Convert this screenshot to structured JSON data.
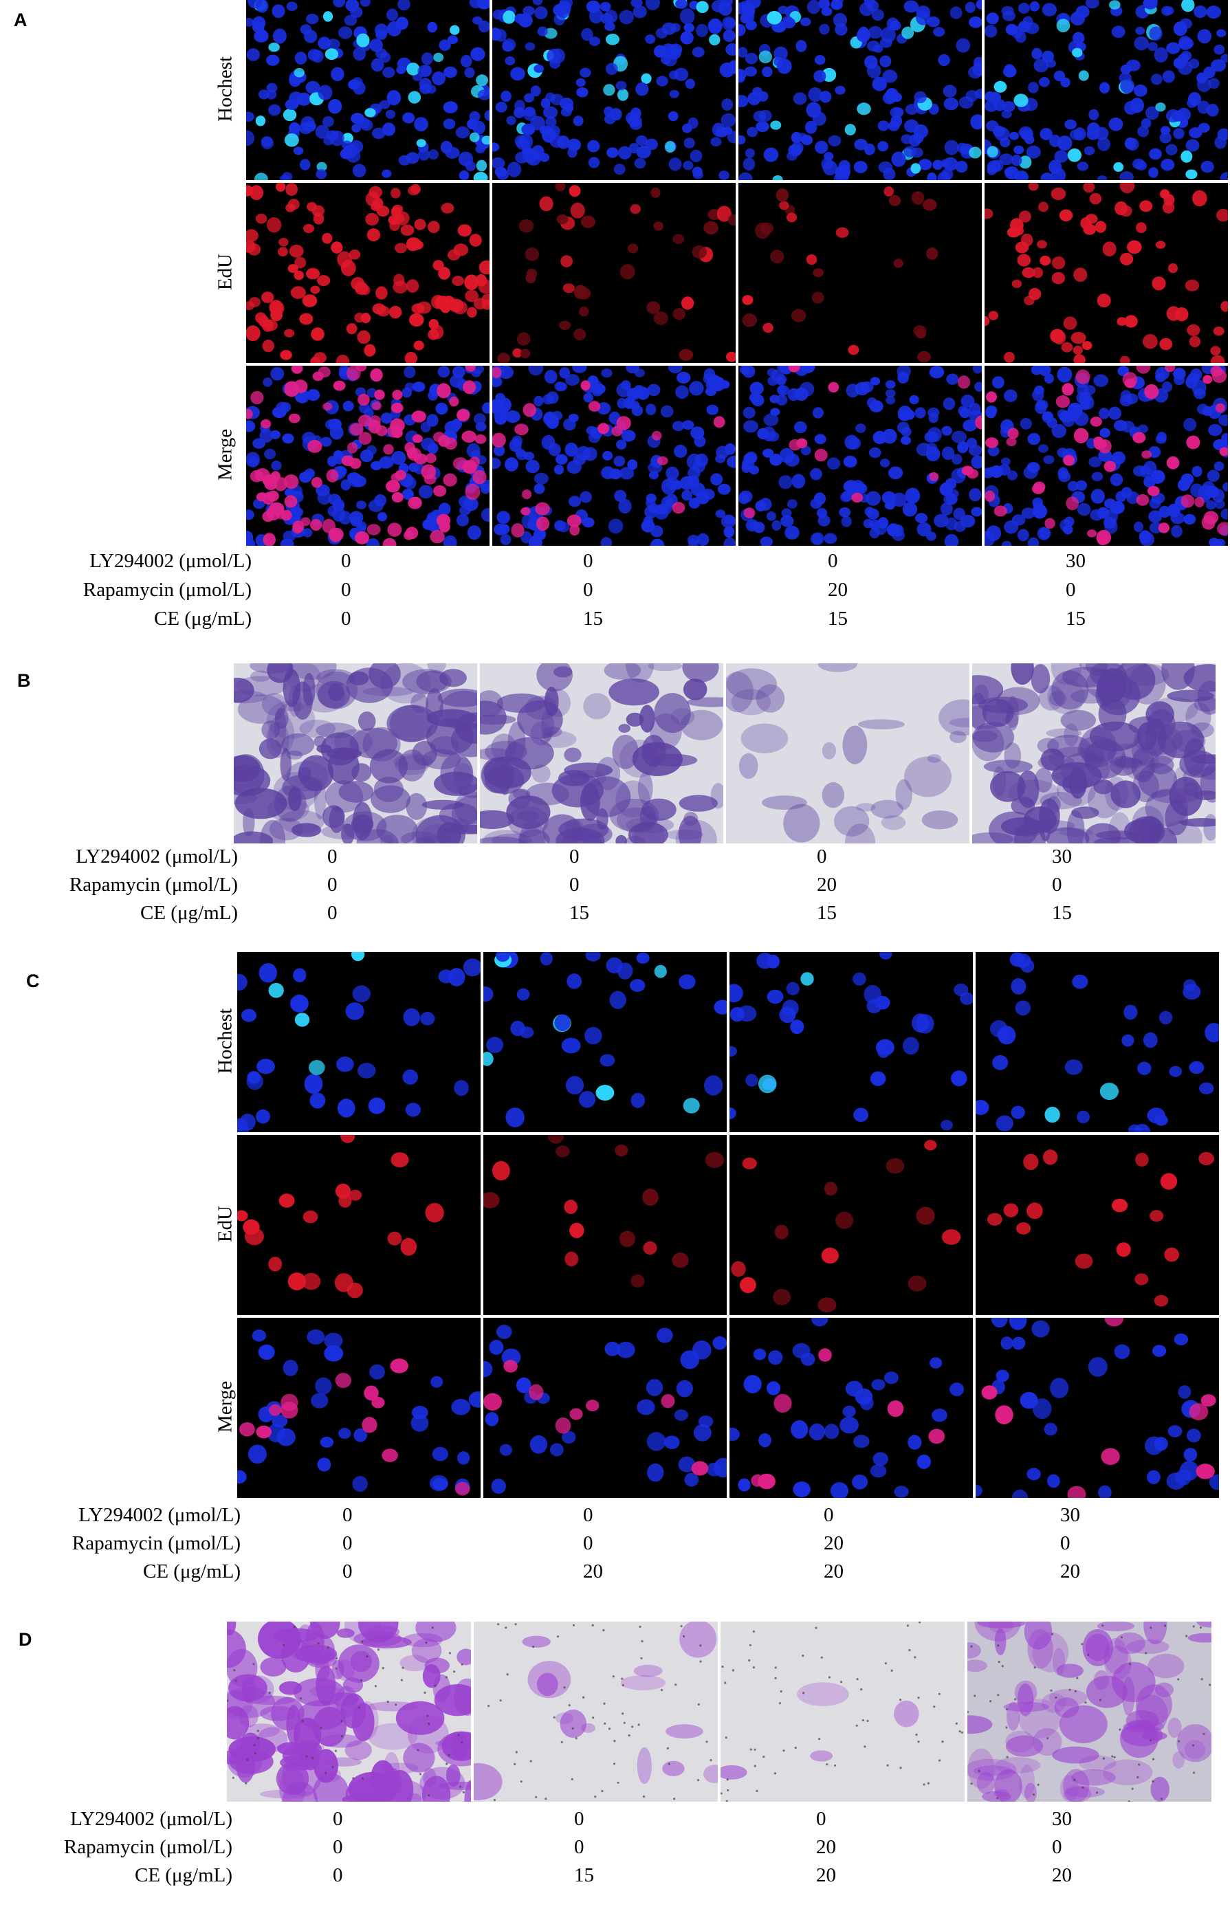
{
  "panels": [
    {
      "letter": "A",
      "kind": "fluorescence",
      "rows": [
        "Hochest",
        "EdU",
        "Merge"
      ],
      "conditions": {
        "LY294002 (μmol/L)": [
          "0",
          "0",
          "0",
          "30"
        ],
        "Rapamycin (μmol/L)": [
          "0",
          "0",
          "20",
          "0"
        ],
        "CE (μg/mL)": [
          "0",
          "15",
          "15",
          "15"
        ]
      }
    },
    {
      "letter": "B",
      "kind": "transwell",
      "conditions": {
        "LY294002 (μmol/L)": [
          "0",
          "0",
          "0",
          "30"
        ],
        "Rapamycin (μmol/L)": [
          "0",
          "0",
          "20",
          "0"
        ],
        "CE (μg/mL)": [
          "0",
          "15",
          "15",
          "15"
        ]
      }
    },
    {
      "letter": "C",
      "kind": "fluorescence",
      "rows": [
        "Hochest",
        "EdU",
        "Merge"
      ],
      "conditions": {
        "LY294002 (μmol/L)": [
          "0",
          "0",
          "0",
          "30"
        ],
        "Rapamycin (μmol/L)": [
          "0",
          "0",
          "20",
          "0"
        ],
        "CE (μg/mL)": [
          "0",
          "20",
          "20",
          "20"
        ]
      }
    },
    {
      "letter": "D",
      "kind": "transwell",
      "conditions": {
        "LY294002 (μmol/L)": [
          "0",
          "0",
          "0",
          "30"
        ],
        "Rapamycin (μmol/L)": [
          "0",
          "0",
          "20",
          "0"
        ],
        "CE (μg/mL)": [
          "0",
          "15",
          "20",
          "20"
        ]
      }
    }
  ],
  "colors": {
    "hoechst": "#1a2fe0",
    "hoechst_bright": "#2fd6ff",
    "edu": "#e0182a",
    "merge_pink": "#e0208a",
    "stain_purple": "#5a3fa0",
    "stain_bg": "#dcdce4",
    "d_purple": "#9a40d0"
  },
  "label_keys": [
    "LY294002 (μmol/L)",
    "Rapamycin (μmol/L)",
    "CE (μg/mL)"
  ]
}
